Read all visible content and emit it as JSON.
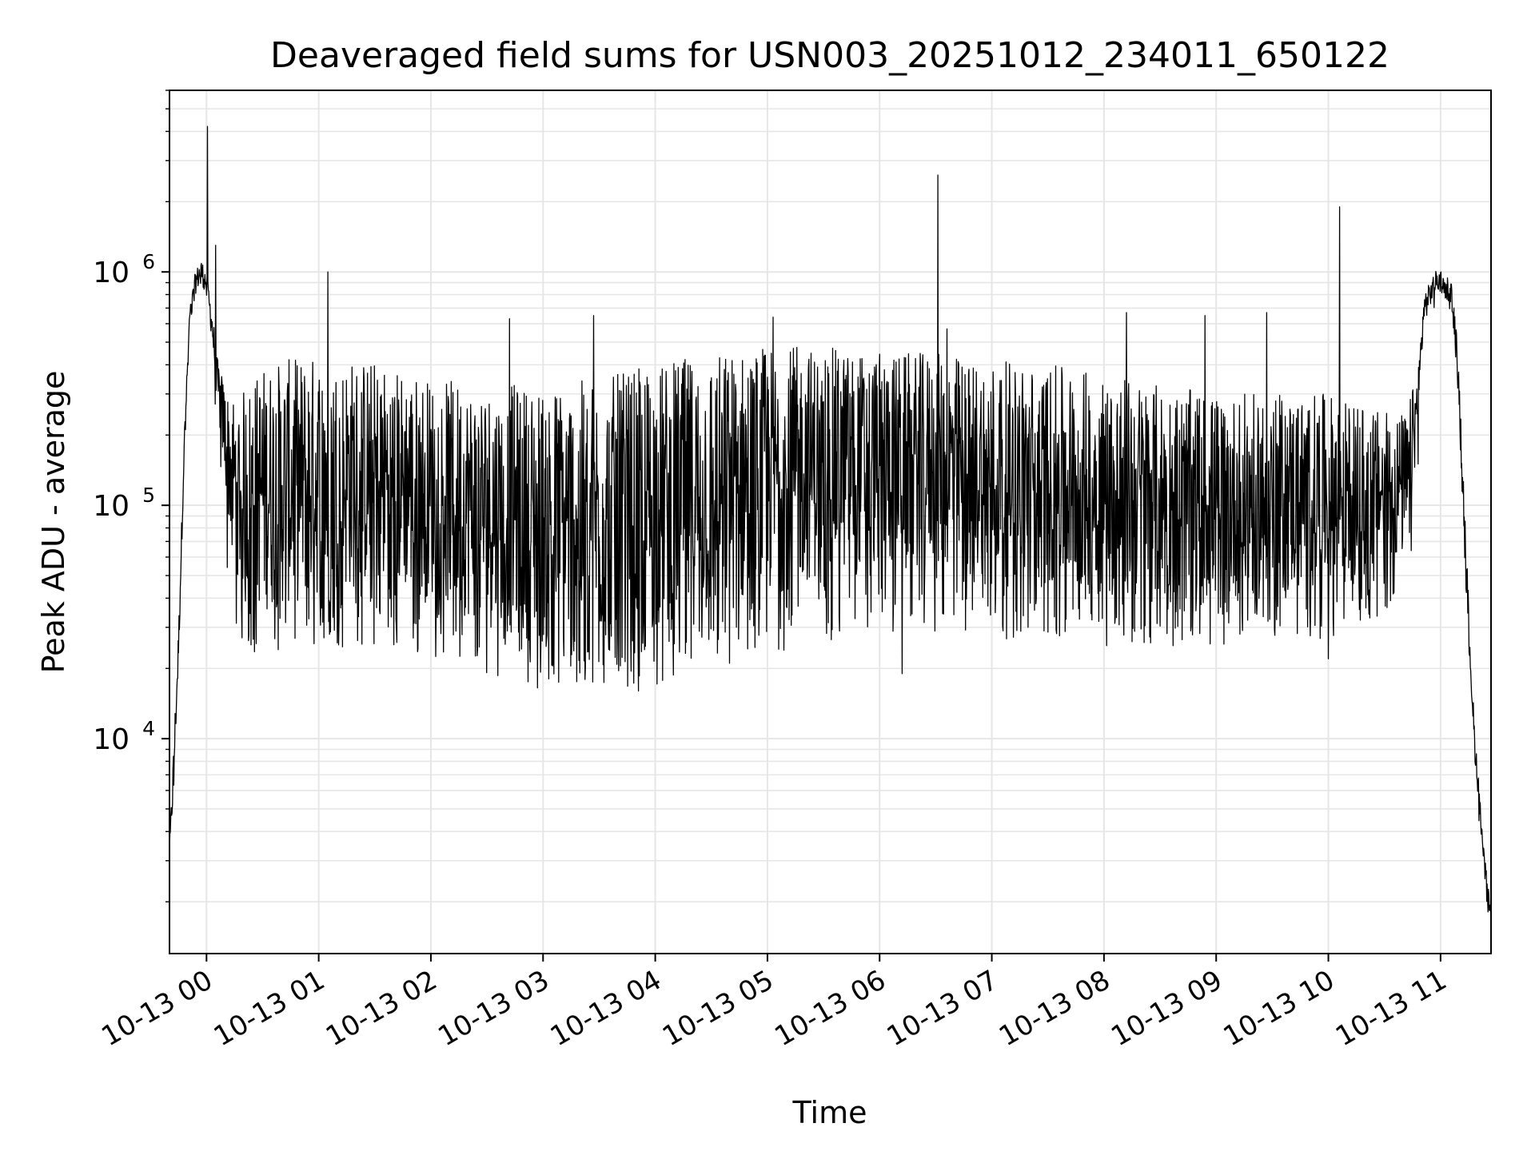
{
  "chart_data": {
    "type": "line",
    "title": "Deaveraged field sums for USN003_20251012_234011_650122",
    "xlabel": "Time",
    "ylabel": "Peak ADU - average",
    "yscale": "log",
    "grid": "major-and-minor",
    "xlim_hours": [
      -0.33,
      11.45
    ],
    "ylim": [
      1200,
      6000000
    ],
    "x_ticks": [
      {
        "hour": 0,
        "label": "10-13 00"
      },
      {
        "hour": 1,
        "label": "10-13 01"
      },
      {
        "hour": 2,
        "label": "10-13 02"
      },
      {
        "hour": 3,
        "label": "10-13 03"
      },
      {
        "hour": 4,
        "label": "10-13 04"
      },
      {
        "hour": 5,
        "label": "10-13 05"
      },
      {
        "hour": 6,
        "label": "10-13 06"
      },
      {
        "hour": 7,
        "label": "10-13 07"
      },
      {
        "hour": 8,
        "label": "10-13 08"
      },
      {
        "hour": 9,
        "label": "10-13 09"
      },
      {
        "hour": 10,
        "label": "10-13 10"
      },
      {
        "hour": 11,
        "label": "10-13 11"
      }
    ],
    "y_ticks": [
      {
        "exp": 4,
        "base": "10",
        "sup": "4"
      },
      {
        "exp": 5,
        "base": "10",
        "sup": "5"
      },
      {
        "exp": 6,
        "base": "10",
        "sup": "6"
      }
    ],
    "line_color": "#000000",
    "grid_color": "#e6e6e6",
    "envelope": {
      "hours": [
        -0.33,
        -0.3,
        -0.25,
        -0.2,
        -0.15,
        -0.1,
        -0.05,
        0.0,
        0.05,
        0.1,
        0.15,
        0.2,
        0.3,
        0.5,
        1.0,
        1.5,
        2.0,
        2.5,
        3.0,
        3.5,
        4.0,
        4.5,
        5.0,
        5.5,
        6.0,
        6.5,
        7.0,
        7.5,
        8.0,
        8.5,
        9.0,
        9.5,
        10.0,
        10.2,
        10.5,
        10.7,
        10.8,
        10.85,
        10.95,
        11.0,
        11.05,
        11.1,
        11.15,
        11.2,
        11.25,
        11.3,
        11.35,
        11.4,
        11.45
      ],
      "upper": [
        3500,
        8000,
        30000,
        200000,
        700000,
        1000000,
        1150000,
        1000000,
        700000,
        420000,
        350000,
        300000,
        300000,
        400000,
        450000,
        420000,
        350000,
        330000,
        330000,
        350000,
        400000,
        450000,
        480000,
        480000,
        450000,
        450000,
        420000,
        400000,
        370000,
        330000,
        300000,
        300000,
        300000,
        280000,
        250000,
        250000,
        400000,
        800000,
        1000000,
        1050000,
        1000000,
        900000,
        500000,
        150000,
        40000,
        12000,
        6000,
        3000,
        1800
      ],
      "lower": [
        3000,
        5000,
        20000,
        150000,
        600000,
        800000,
        900000,
        800000,
        500000,
        250000,
        150000,
        80000,
        45000,
        35000,
        40000,
        45000,
        40000,
        30000,
        25000,
        25000,
        28000,
        32000,
        40000,
        50000,
        55000,
        55000,
        50000,
        45000,
        40000,
        38000,
        38000,
        40000,
        45000,
        50000,
        55000,
        60000,
        200000,
        600000,
        800000,
        850000,
        800000,
        700000,
        400000,
        100000,
        25000,
        9000,
        4500,
        2500,
        1500
      ],
      "floor": [
        3000,
        5000,
        20000,
        150000,
        600000,
        800000,
        900000,
        800000,
        400000,
        150000,
        60000,
        35000,
        25000,
        22000,
        24000,
        25000,
        22000,
        19000,
        17000,
        16500,
        17000,
        18500,
        22000,
        26000,
        28000,
        28000,
        27000,
        26000,
        25000,
        25000,
        25000,
        26000,
        27000,
        30000,
        32000,
        35000,
        150000,
        500000,
        700000,
        800000,
        750000,
        650000,
        350000,
        90000,
        22000,
        8000,
        4000,
        2200,
        1400
      ]
    },
    "spikes": [
      {
        "hour": 0.01,
        "value": 4200000
      },
      {
        "hour": 0.08,
        "value": 1300000
      },
      {
        "hour": 1.08,
        "value": 1000000
      },
      {
        "hour": 2.7,
        "value": 630000
      },
      {
        "hour": 3.45,
        "value": 650000
      },
      {
        "hour": 5.05,
        "value": 640000
      },
      {
        "hour": 6.52,
        "value": 2600000
      },
      {
        "hour": 6.6,
        "value": 570000
      },
      {
        "hour": 6.2,
        "value": 19000
      },
      {
        "hour": 8.2,
        "value": 670000
      },
      {
        "hour": 8.9,
        "value": 650000
      },
      {
        "hour": 9.45,
        "value": 670000
      },
      {
        "hour": 10.1,
        "value": 1900000
      },
      {
        "hour": 3.85,
        "value": 16000
      },
      {
        "hour": 2.95,
        "value": 16500
      },
      {
        "hour": 10.0,
        "value": 22000
      }
    ],
    "samples_per_hour": 260
  }
}
